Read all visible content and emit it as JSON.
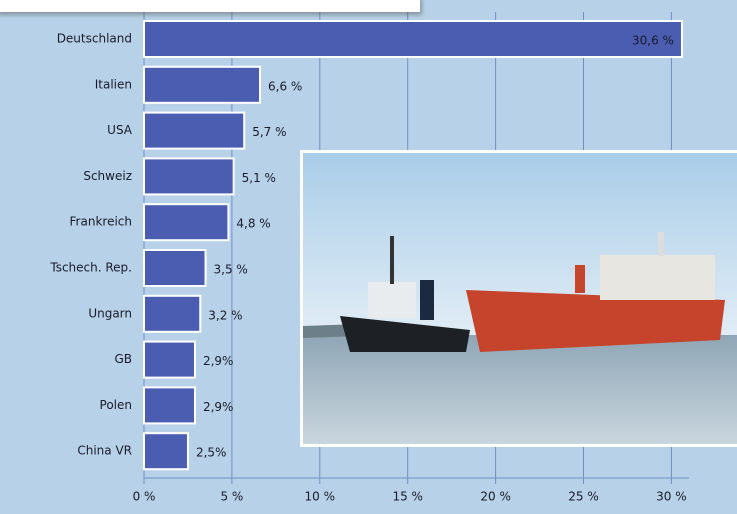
{
  "chart_data": {
    "type": "bar",
    "orientation": "horizontal",
    "categories": [
      "Deutschland",
      "Italien",
      "USA",
      "Schweiz",
      "Frankreich",
      "Tschech. Rep.",
      "Ungarn",
      "GB",
      "Polen",
      "China VR"
    ],
    "values": [
      30.6,
      6.6,
      5.7,
      5.1,
      4.8,
      3.5,
      3.2,
      2.9,
      2.9,
      2.5
    ],
    "value_labels": [
      "30,6 %",
      "6,6 %",
      "5,7 %",
      "5,1 %",
      "4,8 %",
      "3,5 %",
      "3,2 %",
      "2,9%",
      "2,9%",
      "2,5%"
    ],
    "color": "#4a5db0",
    "xlim": [
      0,
      31
    ],
    "xticks": [
      {
        "value": 0,
        "label": "0 %"
      },
      {
        "value": 5,
        "label": "5 %"
      },
      {
        "value": 10,
        "label": "10 %"
      },
      {
        "value": 15,
        "label": "15 %"
      },
      {
        "value": 20,
        "label": "20 %"
      },
      {
        "value": 25,
        "label": "25 %"
      },
      {
        "value": 30,
        "label": "30 %"
      }
    ],
    "grid": true
  }
}
